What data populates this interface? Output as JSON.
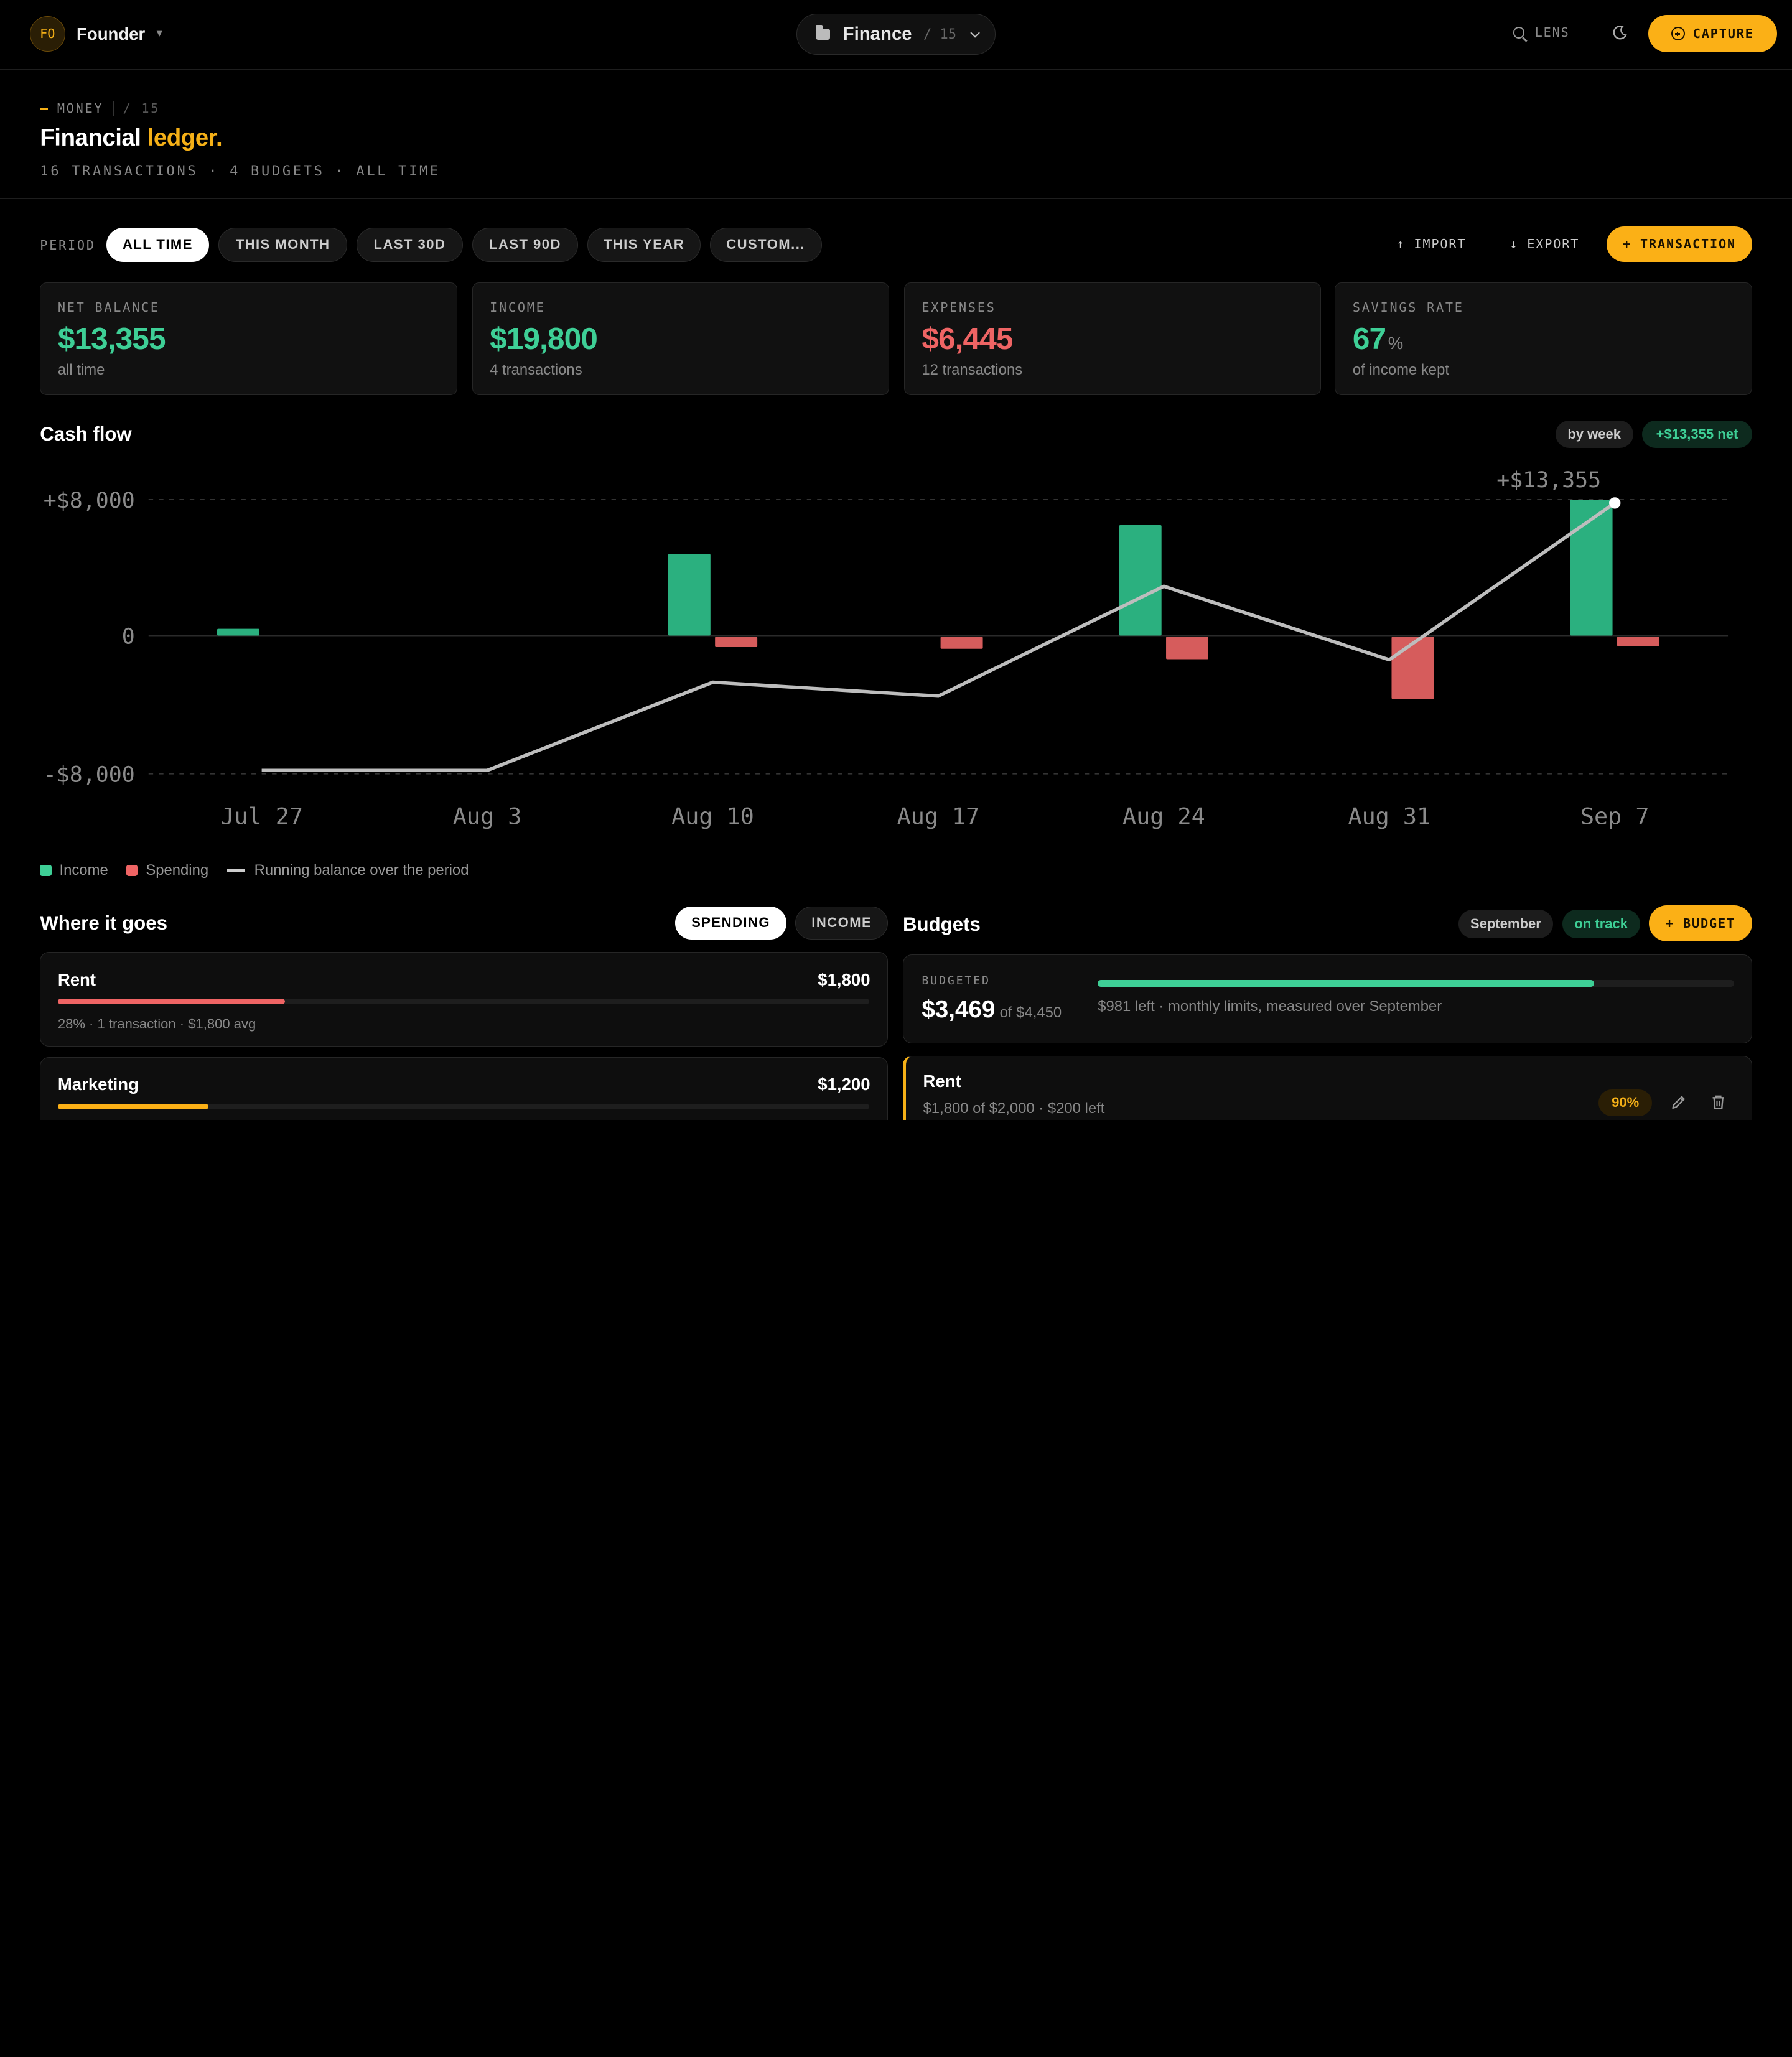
{
  "topbar": {
    "avatar_initials": "FO",
    "workspace": "Founder",
    "workspace_caret": "▾",
    "switcher_title": "Finance",
    "switcher_count": "/ 15",
    "lens_label": "LENS",
    "capture_label": "CAPTURE",
    "icons": [
      "folder-icon",
      "chevron-down-icon",
      "search-icon",
      "moon-icon",
      "plus-circle-icon"
    ]
  },
  "header": {
    "eyebrow": "MONEY",
    "eyebrow_count": "/ 15",
    "title_main": "Financial",
    "title_accent": "ledger.",
    "subtitle": "16 TRANSACTIONS · 4 BUDGETS · ALL TIME"
  },
  "filters": {
    "period_label": "PERIOD",
    "chips": [
      "ALL TIME",
      "THIS MONTH",
      "LAST 30D",
      "LAST 90D",
      "THIS YEAR",
      "CUSTOM..."
    ],
    "active_chip": "ALL TIME",
    "import_label": "↑ IMPORT",
    "export_label": "↓ EXPORT",
    "add_label": "+ TRANSACTION"
  },
  "stats": [
    {
      "label": "NET BALANCE",
      "value": "$13,355",
      "sub": "all time",
      "tone": "pos"
    },
    {
      "label": "INCOME",
      "value": "$19,800",
      "sub": "4 transactions",
      "tone": "pos"
    },
    {
      "label": "EXPENSES",
      "value": "$6,445",
      "sub": "12 transactions",
      "tone": "neg"
    },
    {
      "label": "SAVINGS RATE",
      "value": "67",
      "unit": "%",
      "sub": "of income kept",
      "tone": "pos"
    }
  ],
  "cashflow": {
    "title": "Cash flow",
    "granularity": "by week",
    "net_badge": "+$13,355 net",
    "legend": {
      "income": "Income",
      "spending": "Spending",
      "balance": "Running balance over the period"
    }
  },
  "chart_data": {
    "type": "bar",
    "categories": [
      "Jul 27",
      "Aug 3",
      "Aug 10",
      "Aug 17",
      "Aug 24",
      "Aug 31",
      "Sep 7"
    ],
    "y_tick_labels": [
      "+$8,000",
      "0",
      "-$8,000"
    ],
    "ylim": [
      -8000,
      8000
    ],
    "series": [
      {
        "name": "Income",
        "kind": "bar",
        "color": "#2bb07f",
        "values": [
          400,
          0,
          4800,
          0,
          6500,
          0,
          8000
        ]
      },
      {
        "name": "Spending",
        "kind": "bar",
        "color": "#d65c5c",
        "values": [
          0,
          0,
          -600,
          -700,
          -1300,
          -3600,
          -550
        ]
      },
      {
        "name": "Running balance over the period",
        "kind": "line",
        "color": "#bdbdbd",
        "values": [
          -7800,
          -7800,
          -2700,
          -3500,
          2900,
          -1400,
          7800
        ]
      }
    ],
    "end_label": "+$13,355",
    "grid": true
  },
  "where": {
    "title": "Where it goes",
    "toggle_spending": "SPENDING",
    "toggle_income": "INCOME",
    "categories": [
      {
        "name": "Rent",
        "amount": "$1,800",
        "share": 0.28,
        "color": "#ef6464",
        "meta": "28% · 1 transaction · $1,800 avg"
      },
      {
        "name": "Marketing",
        "amount": "$1,200",
        "share": 0.186,
        "color": "#fbb016",
        "meta": ""
      }
    ]
  },
  "budgets": {
    "title": "Budgets",
    "month": "September",
    "status": "on track",
    "add_label": "+ BUDGET",
    "summary_label": "BUDGETED",
    "summary_value": "$3,469",
    "summary_of": "of $4,450",
    "summary_progress": 0.78,
    "summary_note": "$981 left · monthly limits, measured over September",
    "items": [
      {
        "name": "Rent",
        "meta": "$1,800 of $2,000 · $200 left",
        "pct": "90%"
      }
    ]
  }
}
